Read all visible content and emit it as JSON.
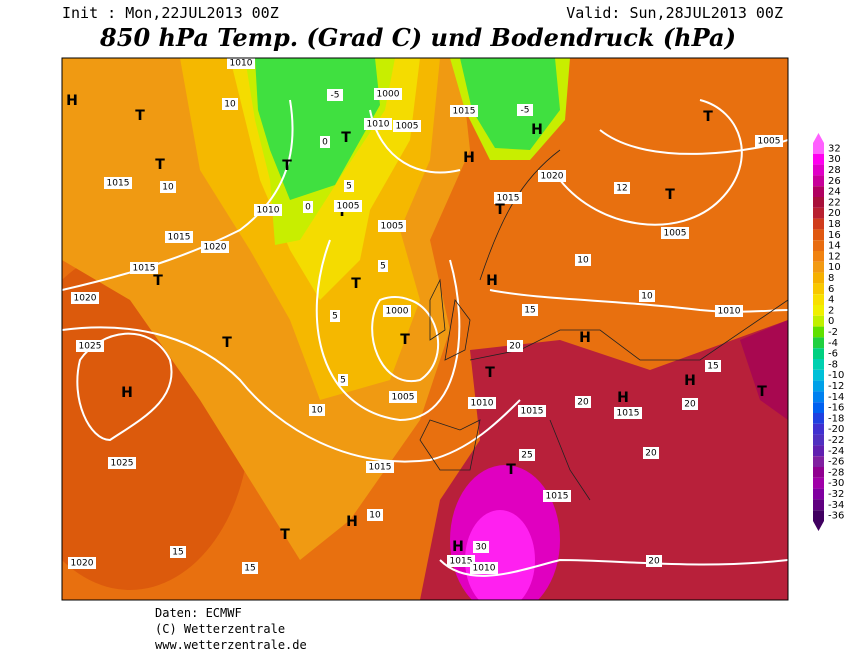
{
  "header": {
    "init": "Init : Mon,22JUL2013 00Z",
    "valid": "Valid: Sun,28JUL2013 00Z",
    "title": "850 hPa Temp. (Grad C) und Bodendruck (hPa)"
  },
  "map": {
    "labels": [
      "H",
      "T",
      "T",
      "1015",
      "10",
      "1015",
      "1015",
      "1020",
      "T",
      "1020",
      "1025",
      "T",
      "H",
      "1025",
      "1020",
      "15",
      "15",
      "T",
      "H",
      "10",
      "1015",
      "10",
      "1005",
      "T",
      "1000",
      "T",
      "5",
      "5",
      "1005",
      "5",
      "T",
      "1010",
      "1005",
      "0",
      "5",
      "T",
      "0",
      "T",
      "-5",
      "1000",
      "1010",
      "1005",
      "1015",
      "-5",
      "H",
      "H",
      "1020",
      "1015",
      "T",
      "H",
      "15",
      "20",
      "T",
      "1010",
      "1015",
      "20",
      "H",
      "1015",
      "20",
      "H",
      "T",
      "15",
      "1010",
      "10",
      "10",
      "1005",
      "T",
      "12",
      "1005",
      "T",
      "H",
      "25",
      "T",
      "1015",
      "20",
      "20",
      "H",
      "30",
      "1015",
      "1010",
      "1010",
      "10"
    ]
  },
  "colorbar": {
    "ticks": [
      32,
      30,
      28,
      26,
      24,
      22,
      20,
      18,
      16,
      14,
      12,
      10,
      8,
      6,
      4,
      2,
      0,
      -2,
      -4,
      -6,
      -8,
      -10,
      -12,
      -14,
      -16,
      -18,
      -20,
      -22,
      -24,
      -26,
      -28,
      -30,
      -32,
      -34,
      -36
    ],
    "colors": [
      "#ff60ff",
      "#ff00f0",
      "#e000c8",
      "#c8009a",
      "#b00060",
      "#a8103a",
      "#b82030",
      "#d03c1c",
      "#e05810",
      "#e86c10",
      "#f08210",
      "#f29a12",
      "#f5b000",
      "#f8c800",
      "#f8e000",
      "#f0f000",
      "#c0f000",
      "#60e000",
      "#20d040",
      "#00d080",
      "#00d0b0",
      "#00c0d8",
      "#00a0e8",
      "#0080f0",
      "#0060f0",
      "#2040e0",
      "#4030d0",
      "#5030c0",
      "#6020b0",
      "#8020a0",
      "#900090",
      "#a000a8",
      "#8000a0",
      "#600080",
      "#400060"
    ]
  },
  "footer": {
    "source": "Daten: ECMWF",
    "copyright": "(C) Wetterzentrale",
    "url": "www.wetterzentrale.de"
  }
}
